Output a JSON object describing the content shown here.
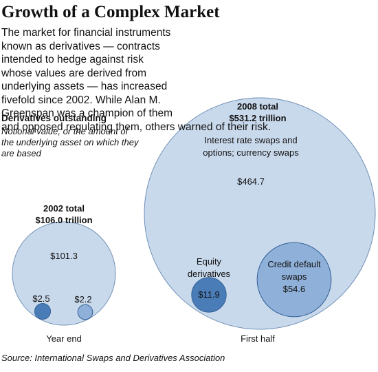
{
  "chart_data": {
    "type": "bubble",
    "title": "Growth of a Complex Market",
    "description": "The market for financial instruments known as derivatives — contracts intended to hedge against risk whose values are derived from underlying assets — has increased fivefold since 2002. While Alan M. Greenspan was a champion of them and opposed regulating them, others warned of their risk.",
    "subtitle": "Derivatives outstanding",
    "note": "Notional value, or the amount of the underlying asset on which they are based",
    "source": "Source: International Swaps and Derivatives Association",
    "categories": [
      "Year end",
      "First half"
    ],
    "total_titles": [
      "2002 total",
      "2008 total"
    ],
    "totals": [
      106.0,
      531.2
    ],
    "total_labels": [
      "$106.0 trillion",
      "$531.2 trillion"
    ],
    "total_color": "#c9d9ec",
    "series": [
      {
        "name": "Interest rate swaps and options; currency swaps",
        "color": "#c9d9ec",
        "values": [
          101.3,
          464.7
        ],
        "value_labels": [
          "$101.3",
          "$464.7"
        ]
      },
      {
        "name": "Equity derivatives",
        "color": "#4a7db8",
        "values": [
          2.5,
          11.9
        ],
        "value_labels": [
          "$2.5",
          "$11.9"
        ]
      },
      {
        "name": "Credit default swaps",
        "color": "#8fb0d8",
        "values": [
          2.2,
          54.6
        ],
        "value_labels": [
          "$2.2",
          "$54.6"
        ]
      }
    ]
  }
}
